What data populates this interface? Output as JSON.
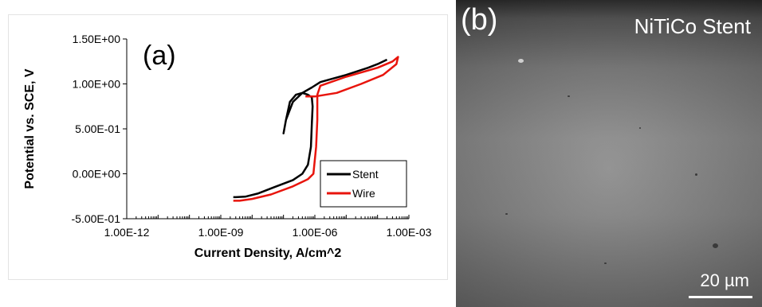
{
  "panel_a": {
    "label": "(a)"
  },
  "panel_b": {
    "label": "(b)",
    "title": "NiTiCo Stent",
    "scale_bar": "20 µm"
  },
  "chart_data": {
    "type": "line",
    "title": "",
    "xlabel": "Current Density, A/cm^2",
    "ylabel": "Potential  vs. SCE, V",
    "x_scale": "log",
    "xlim": [
      1e-12,
      0.001
    ],
    "ylim": [
      -0.5,
      1.5
    ],
    "x_ticks": [
      "1.00E-12",
      "1.00E-09",
      "1.00E-06",
      "1.00E-03"
    ],
    "y_ticks": [
      "-5.00E-01",
      "0.00E+00",
      "5.00E-01",
      "1.00E+00",
      "1.50E+00"
    ],
    "grid": false,
    "legend_position": "bottom-right",
    "series": [
      {
        "name": "Stent",
        "color": "#000000",
        "points": [
          [
            2.5e-09,
            -0.26
          ],
          [
            3e-09,
            -0.26
          ],
          [
            6e-09,
            -0.255
          ],
          [
            1.5e-08,
            -0.22
          ],
          [
            5e-08,
            -0.15
          ],
          [
            2e-07,
            -0.07
          ],
          [
            4e-07,
            0.0
          ],
          [
            6e-07,
            0.1
          ],
          [
            7.5e-07,
            0.3
          ],
          [
            8e-07,
            0.55
          ],
          [
            8.5e-07,
            0.75
          ],
          [
            8e-07,
            0.85
          ],
          [
            6e-07,
            0.88
          ],
          [
            4e-07,
            0.9
          ],
          [
            2.5e-07,
            0.88
          ],
          [
            1.6e-07,
            0.8
          ],
          [
            1.2e-07,
            0.6
          ],
          [
            1e-07,
            0.45
          ],
          [
            1.2e-07,
            0.6
          ],
          [
            2e-07,
            0.8
          ],
          [
            4e-07,
            0.9
          ],
          [
            8e-07,
            0.96
          ],
          [
            1.5e-06,
            1.02
          ],
          [
            1e-05,
            1.1
          ],
          [
            5e-05,
            1.18
          ],
          [
            0.0001,
            1.22
          ],
          [
            0.0002,
            1.27
          ]
        ]
      },
      {
        "name": "Wire",
        "color": "#e8140c",
        "points": [
          [
            2.5e-09,
            -0.3
          ],
          [
            4e-09,
            -0.3
          ],
          [
            1e-08,
            -0.28
          ],
          [
            4e-08,
            -0.23
          ],
          [
            2e-07,
            -0.14
          ],
          [
            6e-07,
            -0.06
          ],
          [
            9e-07,
            0.0
          ],
          [
            1.1e-06,
            0.3
          ],
          [
            1.2e-06,
            0.6
          ],
          [
            1.2e-06,
            0.88
          ],
          [
            1.5e-06,
            0.98
          ],
          [
            1e-05,
            1.08
          ],
          [
            0.0001,
            1.18
          ],
          [
            0.0003,
            1.25
          ],
          [
            0.00045,
            1.3
          ],
          [
            0.0004,
            1.22
          ],
          [
            0.00015,
            1.1
          ],
          [
            3e-05,
            1.0
          ],
          [
            5e-06,
            0.9
          ],
          [
            1e-06,
            0.86
          ],
          [
            5e-07,
            0.86
          ]
        ]
      }
    ]
  }
}
